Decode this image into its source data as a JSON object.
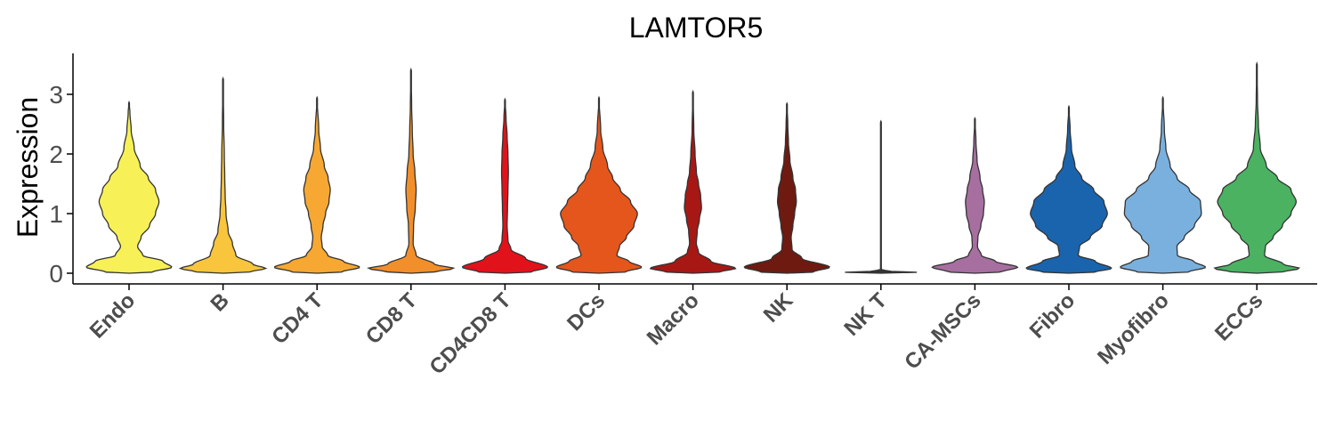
{
  "chart_data": {
    "type": "violin",
    "title": "LAMTOR5",
    "xlabel": "",
    "ylabel": "Expression",
    "ylim": [
      -0.15,
      3.7
    ],
    "yticks": [
      0,
      1,
      2,
      3
    ],
    "grid": false,
    "legend": "none",
    "categories": [
      "Endo",
      "B",
      "CD4 T",
      "CD8 T",
      "CD4CD8 T",
      "DCs",
      "Macro",
      "NK",
      "NK T",
      "CA-MSCs",
      "Fibro",
      "Myofibro",
      "ECCs"
    ],
    "series": [
      {
        "category": "Endo",
        "color": "#F7F157",
        "max": 2.87,
        "profile": [
          [
            0,
            0.0
          ],
          [
            0.02,
            0.55
          ],
          [
            0.1,
            1.0
          ],
          [
            0.2,
            0.8
          ],
          [
            0.3,
            0.32
          ],
          [
            0.45,
            0.2
          ],
          [
            0.6,
            0.28
          ],
          [
            0.8,
            0.48
          ],
          [
            1.0,
            0.62
          ],
          [
            1.2,
            0.7
          ],
          [
            1.4,
            0.62
          ],
          [
            1.6,
            0.45
          ],
          [
            1.8,
            0.26
          ],
          [
            2.1,
            0.12
          ],
          [
            2.4,
            0.05
          ],
          [
            2.7,
            0.02
          ],
          [
            2.87,
            0
          ]
        ]
      },
      {
        "category": "B",
        "color": "#F8C53C",
        "max": 3.27,
        "profile": [
          [
            0,
            0.0
          ],
          [
            0.02,
            0.62
          ],
          [
            0.08,
            1.0
          ],
          [
            0.15,
            0.7
          ],
          [
            0.3,
            0.3
          ],
          [
            0.5,
            0.22
          ],
          [
            0.7,
            0.12
          ],
          [
            1.0,
            0.07
          ],
          [
            1.3,
            0.05
          ],
          [
            1.6,
            0.04
          ],
          [
            2.0,
            0.03
          ],
          [
            2.5,
            0.015
          ],
          [
            3.27,
            0
          ]
        ]
      },
      {
        "category": "CD4 T",
        "color": "#F6A832",
        "max": 2.95,
        "profile": [
          [
            0,
            0.0
          ],
          [
            0.02,
            0.58
          ],
          [
            0.1,
            1.0
          ],
          [
            0.2,
            0.62
          ],
          [
            0.3,
            0.25
          ],
          [
            0.45,
            0.12
          ],
          [
            0.6,
            0.1
          ],
          [
            0.8,
            0.14
          ],
          [
            1.0,
            0.2
          ],
          [
            1.2,
            0.28
          ],
          [
            1.4,
            0.31
          ],
          [
            1.6,
            0.26
          ],
          [
            1.8,
            0.17
          ],
          [
            2.1,
            0.08
          ],
          [
            2.4,
            0.04
          ],
          [
            2.95,
            0
          ]
        ]
      },
      {
        "category": "CD8 T",
        "color": "#F28F2A",
        "max": 3.42,
        "profile": [
          [
            0,
            0.0
          ],
          [
            0.02,
            0.55
          ],
          [
            0.08,
            1.0
          ],
          [
            0.15,
            0.55
          ],
          [
            0.3,
            0.12
          ],
          [
            0.5,
            0.05
          ],
          [
            0.8,
            0.06
          ],
          [
            1.1,
            0.1
          ],
          [
            1.4,
            0.12
          ],
          [
            1.7,
            0.09
          ],
          [
            2.0,
            0.05
          ],
          [
            2.4,
            0.03
          ],
          [
            2.8,
            0.015
          ],
          [
            3.42,
            0
          ]
        ]
      },
      {
        "category": "CD4CD8 T",
        "color": "#E2121A",
        "max": 2.92,
        "profile": [
          [
            0,
            0.0
          ],
          [
            0.02,
            0.62
          ],
          [
            0.1,
            1.0
          ],
          [
            0.25,
            0.48
          ],
          [
            0.4,
            0.14
          ],
          [
            0.55,
            0.07
          ],
          [
            0.8,
            0.05
          ],
          [
            1.1,
            0.06
          ],
          [
            1.4,
            0.07
          ],
          [
            1.7,
            0.08
          ],
          [
            2.0,
            0.07
          ],
          [
            2.3,
            0.05
          ],
          [
            2.6,
            0.025
          ],
          [
            2.92,
            0
          ]
        ]
      },
      {
        "category": "DCs",
        "color": "#E5561C",
        "max": 2.95,
        "profile": [
          [
            0,
            0.0
          ],
          [
            0.02,
            0.62
          ],
          [
            0.1,
            1.0
          ],
          [
            0.2,
            0.7
          ],
          [
            0.3,
            0.42
          ],
          [
            0.45,
            0.48
          ],
          [
            0.6,
            0.64
          ],
          [
            0.8,
            0.82
          ],
          [
            1.0,
            0.9
          ],
          [
            1.2,
            0.74
          ],
          [
            1.4,
            0.5
          ],
          [
            1.6,
            0.32
          ],
          [
            1.8,
            0.2
          ],
          [
            2.1,
            0.09
          ],
          [
            2.4,
            0.04
          ],
          [
            2.95,
            0
          ]
        ]
      },
      {
        "category": "Macro",
        "color": "#A71815",
        "max": 3.05,
        "profile": [
          [
            0,
            0.0
          ],
          [
            0.02,
            0.62
          ],
          [
            0.08,
            1.0
          ],
          [
            0.2,
            0.42
          ],
          [
            0.35,
            0.13
          ],
          [
            0.5,
            0.08
          ],
          [
            0.7,
            0.1
          ],
          [
            0.9,
            0.15
          ],
          [
            1.1,
            0.2
          ],
          [
            1.3,
            0.18
          ],
          [
            1.5,
            0.13
          ],
          [
            1.7,
            0.08
          ],
          [
            2.0,
            0.05
          ],
          [
            2.4,
            0.02
          ],
          [
            3.05,
            0
          ]
        ]
      },
      {
        "category": "NK",
        "color": "#6E1A10",
        "max": 2.85,
        "profile": [
          [
            0,
            0.0
          ],
          [
            0.02,
            0.62
          ],
          [
            0.1,
            1.0
          ],
          [
            0.25,
            0.35
          ],
          [
            0.4,
            0.12
          ],
          [
            0.6,
            0.1
          ],
          [
            0.8,
            0.14
          ],
          [
            1.0,
            0.18
          ],
          [
            1.2,
            0.22
          ],
          [
            1.4,
            0.2
          ],
          [
            1.6,
            0.14
          ],
          [
            1.9,
            0.07
          ],
          [
            2.2,
            0.035
          ],
          [
            2.5,
            0.02
          ],
          [
            2.85,
            0
          ]
        ]
      },
      {
        "category": "NK T",
        "color": "#333333",
        "max": 2.55,
        "profile": [
          [
            0,
            0.0
          ],
          [
            0.01,
            1.0
          ],
          [
            0.03,
            0.25
          ],
          [
            0.06,
            0.01
          ],
          [
            0.5,
            0.006
          ],
          [
            1.0,
            0.006
          ],
          [
            1.5,
            0.006
          ],
          [
            2.0,
            0.005
          ],
          [
            2.55,
            0
          ]
        ]
      },
      {
        "category": "CA-MSCs",
        "color": "#A76FA0",
        "max": 2.6,
        "profile": [
          [
            0,
            0.0
          ],
          [
            0.02,
            0.62
          ],
          [
            0.1,
            1.0
          ],
          [
            0.2,
            0.48
          ],
          [
            0.3,
            0.15
          ],
          [
            0.45,
            0.06
          ],
          [
            0.6,
            0.07
          ],
          [
            0.8,
            0.14
          ],
          [
            1.0,
            0.2
          ],
          [
            1.2,
            0.22
          ],
          [
            1.4,
            0.18
          ],
          [
            1.6,
            0.12
          ],
          [
            1.9,
            0.05
          ],
          [
            2.2,
            0.025
          ],
          [
            2.6,
            0
          ]
        ]
      },
      {
        "category": "Fibro",
        "color": "#1A64AD",
        "max": 2.8,
        "profile": [
          [
            0,
            0.0
          ],
          [
            0.02,
            0.62
          ],
          [
            0.08,
            1.0
          ],
          [
            0.2,
            0.62
          ],
          [
            0.3,
            0.22
          ],
          [
            0.45,
            0.25
          ],
          [
            0.6,
            0.5
          ],
          [
            0.8,
            0.78
          ],
          [
            1.0,
            0.9
          ],
          [
            1.2,
            0.82
          ],
          [
            1.4,
            0.58
          ],
          [
            1.6,
            0.3
          ],
          [
            1.8,
            0.14
          ],
          [
            2.1,
            0.06
          ],
          [
            2.4,
            0.03
          ],
          [
            2.8,
            0
          ]
        ]
      },
      {
        "category": "Myofibro",
        "color": "#7AB0DE",
        "max": 2.95,
        "profile": [
          [
            0,
            0.0
          ],
          [
            0.02,
            0.6
          ],
          [
            0.1,
            1.0
          ],
          [
            0.2,
            0.72
          ],
          [
            0.3,
            0.34
          ],
          [
            0.45,
            0.33
          ],
          [
            0.6,
            0.5
          ],
          [
            0.8,
            0.74
          ],
          [
            1.0,
            0.9
          ],
          [
            1.2,
            0.88
          ],
          [
            1.4,
            0.62
          ],
          [
            1.6,
            0.33
          ],
          [
            1.8,
            0.17
          ],
          [
            2.1,
            0.07
          ],
          [
            2.4,
            0.035
          ],
          [
            2.95,
            0
          ]
        ]
      },
      {
        "category": "ECCs",
        "color": "#4BB262",
        "max": 3.52,
        "profile": [
          [
            0,
            0.0
          ],
          [
            0.02,
            0.6
          ],
          [
            0.08,
            1.0
          ],
          [
            0.15,
            0.62
          ],
          [
            0.3,
            0.18
          ],
          [
            0.45,
            0.2
          ],
          [
            0.6,
            0.38
          ],
          [
            0.8,
            0.6
          ],
          [
            1.0,
            0.8
          ],
          [
            1.2,
            0.92
          ],
          [
            1.4,
            0.8
          ],
          [
            1.6,
            0.48
          ],
          [
            1.8,
            0.22
          ],
          [
            2.1,
            0.08
          ],
          [
            2.5,
            0.035
          ],
          [
            2.9,
            0.015
          ],
          [
            3.52,
            0
          ]
        ]
      }
    ]
  }
}
